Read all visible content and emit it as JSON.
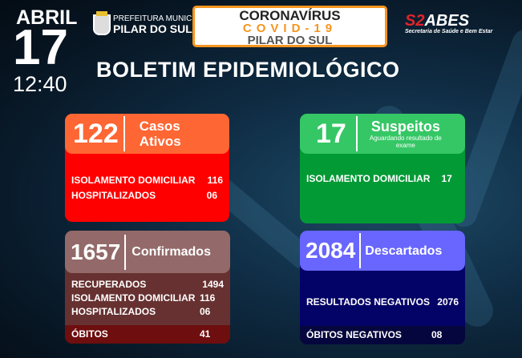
{
  "header": {
    "month": "ABRIL",
    "day": "17",
    "time": "12:40",
    "prefeitura_line1": "PREFEITURA MUNICIPAL",
    "prefeitura_line2": "PILAR DO SUL",
    "banner_line1": "CORONAVÍRUS",
    "banner_line2": "COVID-19",
    "banner_line3": "PILAR DO SUL",
    "sabes_prefix": "S2",
    "sabes_name": "ABES",
    "sabes_sub": "Secretaria de Saúde e Bem Estar",
    "title": "BOLETIM EPIDEMIOLÓGICO"
  },
  "colors": {
    "ativos_head": "#fe6634",
    "ativos_body": "#fe0000",
    "suspeitos_head": "#35c765",
    "suspeitos_body": "#029a35",
    "confirmados_head": "#936a69",
    "confirmados_body": "#673131",
    "obitos_row": "#6e0e0e",
    "descartados_head": "#6866fe",
    "descartados_body": "#030266",
    "accent": "#f7941d"
  },
  "ativos": {
    "count": "122",
    "label1": "Casos",
    "label2": "Ativos",
    "rows": [
      {
        "label": "ISOLAMENTO DOMICILIAR",
        "value": "116"
      },
      {
        "label": "HOSPITALIZADOS",
        "value": "06"
      }
    ]
  },
  "suspeitos": {
    "count": "17",
    "label": "Suspeitos",
    "sub": "Aguardando resultado de exame",
    "rows": [
      {
        "label": "ISOLAMENTO DOMICILIAR",
        "value": "17"
      }
    ]
  },
  "confirmados": {
    "count": "1657",
    "label": "Confirmados",
    "rows": [
      {
        "label": "RECUPERADOS",
        "value": "1494"
      },
      {
        "label": "ISOLAMENTO DOMICILIAR",
        "value": "116"
      },
      {
        "label": "HOSPITALIZADOS",
        "value": "06"
      }
    ],
    "obitos": {
      "label": "ÓBITOS",
      "value": "41"
    }
  },
  "descartados": {
    "count": "2084",
    "label": "Descartados",
    "rows": [
      {
        "label": "RESULTADOS NEGATIVOS",
        "value": "2076"
      }
    ],
    "obitos": {
      "label": "ÓBITOS NEGATIVOS",
      "value": "08"
    }
  }
}
